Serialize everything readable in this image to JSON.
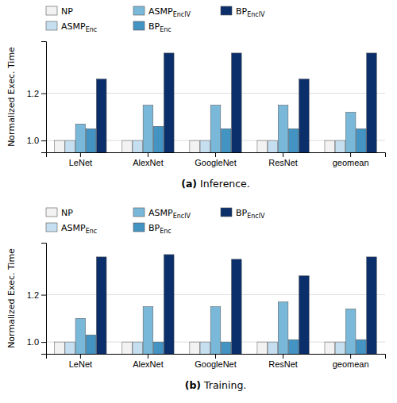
{
  "chart_data": [
    {
      "type": "bar",
      "title": "(a) Inference.",
      "categories": [
        "LeNet",
        "AlexNet",
        "GoogleNet",
        "ResNet",
        "geomean"
      ],
      "series": [
        {
          "name": "NP",
          "color": "#f2f2f2",
          "values": [
            1.0,
            1.0,
            1.0,
            1.0,
            1.0
          ]
        },
        {
          "name": "ASMPEnc",
          "color": "#c6dff0",
          "values": [
            1.0,
            1.0,
            1.0,
            1.0,
            1.0
          ]
        },
        {
          "name": "ASMPEnclV",
          "color": "#7ab8d9",
          "values": [
            1.07,
            1.15,
            1.15,
            1.15,
            1.12
          ]
        },
        {
          "name": "BPEnc",
          "color": "#4393c3",
          "values": [
            1.05,
            1.06,
            1.05,
            1.05,
            1.05
          ]
        },
        {
          "name": "BPEnclV",
          "color": "#0a2f6b",
          "values": [
            1.26,
            1.37,
            1.37,
            1.26,
            1.37
          ]
        }
      ],
      "ylabel": "Normalized Exec. Time",
      "ylim": [
        0.95,
        1.42
      ],
      "yticks": [
        {
          "value": 1.0,
          "label": "1.0"
        },
        {
          "value": 1.2,
          "label": "1.2"
        }
      ],
      "grid": true,
      "legend": "top"
    },
    {
      "type": "bar",
      "title": "(b) Training.",
      "categories": [
        "LeNet",
        "AlexNet",
        "GoogleNet",
        "ResNet",
        "geomean"
      ],
      "series": [
        {
          "name": "NP",
          "color": "#f2f2f2",
          "values": [
            1.0,
            1.0,
            1.0,
            1.0,
            1.0
          ]
        },
        {
          "name": "ASMPEnc",
          "color": "#c6dff0",
          "values": [
            1.0,
            1.0,
            1.0,
            1.0,
            1.0
          ]
        },
        {
          "name": "ASMPEnclV",
          "color": "#7ab8d9",
          "values": [
            1.1,
            1.15,
            1.15,
            1.17,
            1.14
          ]
        },
        {
          "name": "BPEnc",
          "color": "#4393c3",
          "values": [
            1.03,
            1.0,
            1.0,
            1.01,
            1.01
          ]
        },
        {
          "name": "BPEnclV",
          "color": "#0a2f6b",
          "values": [
            1.36,
            1.37,
            1.35,
            1.28,
            1.36
          ]
        }
      ],
      "ylabel": "Normalized Exec. Time",
      "ylim": [
        0.95,
        1.42
      ],
      "yticks": [
        {
          "value": 1.0,
          "label": "1.0"
        },
        {
          "value": 1.2,
          "label": "1.2"
        }
      ],
      "grid": true,
      "legend": "top"
    }
  ]
}
